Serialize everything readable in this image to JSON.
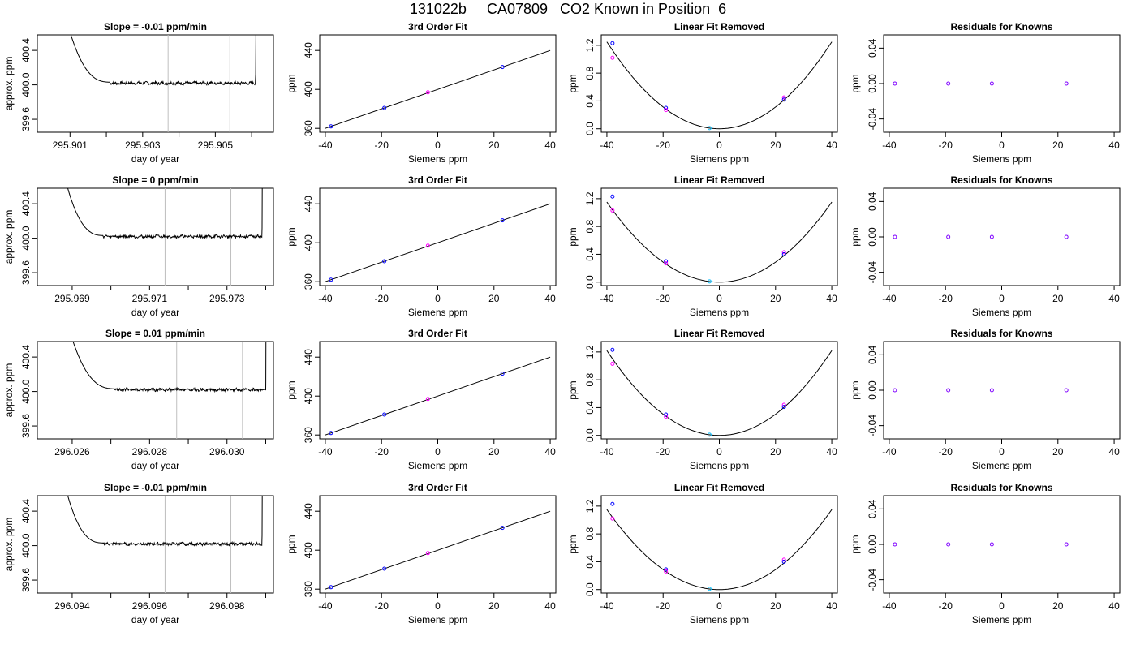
{
  "title": "131022b     CA07809   CO2 Known in Position  6",
  "colors": {
    "axis": "#000000",
    "line": "#000000",
    "gridline": "#bebebe",
    "point_blue": "#0000ff",
    "point_magenta": "#ff00ff",
    "point_cyan": "#00bfff"
  },
  "chart_data": [
    {
      "type": "line",
      "title": "Slope =  -0.01  ppm/min",
      "xlabel": "day of year",
      "ylabel": "approx. ppm",
      "xlim": [
        295.9001,
        295.9066
      ],
      "ylim": [
        399.45,
        400.58
      ],
      "xticks": [
        295.901,
        295.902,
        295.903,
        295.904,
        295.905,
        295.906
      ],
      "xtick_labels": [
        "295.901",
        "",
        "295.903",
        "",
        "295.905",
        ""
      ],
      "yticks": [
        399.6,
        400.0,
        400.4
      ],
      "ytick_labels": [
        "399.6",
        "400.0",
        "400.4"
      ],
      "vlines": [
        295.9037,
        295.9054
      ],
      "plateau_start": 295.9021,
      "plateau_end": 295.9061,
      "plateau_level": 400.02
    },
    {
      "type": "scatter",
      "title": "3rd Order Fit",
      "xlabel": "Siemens ppm",
      "ylabel": "ppm",
      "xlim": [
        -42,
        42
      ],
      "ylim": [
        356,
        456
      ],
      "xticks": [
        -40,
        -20,
        0,
        20,
        40
      ],
      "xtick_labels": [
        "-40",
        "-20",
        "0",
        "20",
        "40"
      ],
      "yticks": [
        360,
        400,
        440
      ],
      "ytick_labels": [
        "360",
        "400",
        "440"
      ],
      "points": [
        {
          "x": -38,
          "y": 362
        },
        {
          "x": -19,
          "y": 381
        },
        {
          "x": -3.5,
          "y": 397
        },
        {
          "x": 23,
          "y": 423
        }
      ],
      "fit_line": [
        {
          "x": -40,
          "y": 360
        },
        {
          "x": 40,
          "y": 440
        }
      ]
    },
    {
      "type": "scatter",
      "title": "Linear Fit Removed",
      "xlabel": "Siemens ppm",
      "ylabel": "ppm",
      "xlim": [
        -42,
        42
      ],
      "ylim": [
        -0.05,
        1.35
      ],
      "xticks": [
        -40,
        -20,
        0,
        20,
        40
      ],
      "xtick_labels": [
        "-40",
        "-20",
        "0",
        "20",
        "40"
      ],
      "yticks": [
        0.0,
        0.4,
        0.8,
        1.2
      ],
      "ytick_labels": [
        "0.0",
        "0.4",
        "0.8",
        "1.2"
      ],
      "points": [
        {
          "x": -38,
          "y": 1.23
        },
        {
          "x": -38,
          "y": 1.02
        },
        {
          "x": -19,
          "y": 0.3
        },
        {
          "x": -19,
          "y": 0.27
        },
        {
          "x": -3.5,
          "y": 0.01
        },
        {
          "x": 23,
          "y": 0.45
        },
        {
          "x": 23,
          "y": 0.42
        }
      ],
      "curve_max_y": 1.25
    },
    {
      "type": "scatter",
      "title": "Residuals for Knowns",
      "xlabel": "Siemens ppm",
      "ylabel": "ppm",
      "xlim": [
        -42,
        42
      ],
      "ylim": [
        -0.055,
        0.055
      ],
      "xticks": [
        -40,
        -20,
        0,
        20,
        40
      ],
      "xtick_labels": [
        "-40",
        "-20",
        "0",
        "20",
        "40"
      ],
      "yticks": [
        -0.04,
        0.0,
        0.04
      ],
      "ytick_labels": [
        "-0.04",
        "0.00",
        "0.04"
      ],
      "points": [
        {
          "x": -38,
          "y": 0
        },
        {
          "x": -19,
          "y": 0
        },
        {
          "x": -3.5,
          "y": 0
        },
        {
          "x": 23,
          "y": 0
        }
      ]
    },
    {
      "type": "line",
      "title": "Slope =  0  ppm/min",
      "xlabel": "day of year",
      "ylabel": "approx. ppm",
      "xlim": [
        295.9681,
        295.9742
      ],
      "ylim": [
        399.45,
        400.58
      ],
      "xticks": [
        295.969,
        295.97,
        295.971,
        295.972,
        295.973,
        295.974
      ],
      "xtick_labels": [
        "295.969",
        "",
        "295.971",
        "",
        "295.973",
        ""
      ],
      "yticks": [
        399.6,
        400.0,
        400.4
      ],
      "ytick_labels": [
        "399.6",
        "400.0",
        "400.4"
      ],
      "vlines": [
        295.9714,
        295.9731
      ],
      "plateau_start": 295.9698,
      "plateau_end": 295.9739,
      "plateau_level": 400.02
    },
    {
      "type": "scatter",
      "title": "3rd Order Fit",
      "xlabel": "Siemens ppm",
      "ylabel": "ppm",
      "xlim": [
        -42,
        42
      ],
      "ylim": [
        356,
        456
      ],
      "xticks": [
        -40,
        -20,
        0,
        20,
        40
      ],
      "xtick_labels": [
        "-40",
        "-20",
        "0",
        "20",
        "40"
      ],
      "yticks": [
        360,
        400,
        440
      ],
      "ytick_labels": [
        "360",
        "400",
        "440"
      ],
      "points": [
        {
          "x": -38,
          "y": 362
        },
        {
          "x": -19,
          "y": 381
        },
        {
          "x": -3.5,
          "y": 397
        },
        {
          "x": 23,
          "y": 423
        }
      ],
      "fit_line": [
        {
          "x": -40,
          "y": 360
        },
        {
          "x": 40,
          "y": 440
        }
      ]
    },
    {
      "type": "scatter",
      "title": "Linear Fit Removed",
      "xlabel": "Siemens ppm",
      "ylabel": "ppm",
      "xlim": [
        -42,
        42
      ],
      "ylim": [
        -0.05,
        1.35
      ],
      "xticks": [
        -40,
        -20,
        0,
        20,
        40
      ],
      "xtick_labels": [
        "-40",
        "-20",
        "0",
        "20",
        "40"
      ],
      "yticks": [
        0.0,
        0.4,
        0.8,
        1.2
      ],
      "ytick_labels": [
        "0.0",
        "0.4",
        "0.8",
        "1.2"
      ],
      "points": [
        {
          "x": -38,
          "y": 1.23
        },
        {
          "x": -38,
          "y": 1.03
        },
        {
          "x": -19,
          "y": 0.3
        },
        {
          "x": -19,
          "y": 0.27
        },
        {
          "x": -3.5,
          "y": 0.01
        },
        {
          "x": 23,
          "y": 0.43
        },
        {
          "x": 23,
          "y": 0.4
        }
      ],
      "curve_max_y": 1.15
    },
    {
      "type": "scatter",
      "title": "Residuals for Knowns",
      "xlabel": "Siemens ppm",
      "ylabel": "ppm",
      "xlim": [
        -42,
        42
      ],
      "ylim": [
        -0.055,
        0.055
      ],
      "xticks": [
        -40,
        -20,
        0,
        20,
        40
      ],
      "xtick_labels": [
        "-40",
        "-20",
        "0",
        "20",
        "40"
      ],
      "yticks": [
        -0.04,
        0.0,
        0.04
      ],
      "ytick_labels": [
        "-0.04",
        "0.00",
        "0.04"
      ],
      "points": [
        {
          "x": -38,
          "y": 0
        },
        {
          "x": -19,
          "y": 0
        },
        {
          "x": -3.5,
          "y": 0
        },
        {
          "x": 23,
          "y": 0
        }
      ]
    },
    {
      "type": "line",
      "title": "Slope =  0.01  ppm/min",
      "xlabel": "day of year",
      "ylabel": "approx. ppm",
      "xlim": [
        296.0251,
        296.0312
      ],
      "ylim": [
        399.45,
        400.58
      ],
      "xticks": [
        296.026,
        296.027,
        296.028,
        296.029,
        296.03,
        296.031
      ],
      "xtick_labels": [
        "296.026",
        "",
        "296.028",
        "",
        "296.030",
        ""
      ],
      "yticks": [
        399.6,
        400.0,
        400.4
      ],
      "ytick_labels": [
        "399.6",
        "400.0",
        "400.4"
      ],
      "vlines": [
        296.0287,
        296.0304
      ],
      "plateau_start": 296.0271,
      "plateau_end": 296.031,
      "plateau_level": 400.02
    },
    {
      "type": "scatter",
      "title": "3rd Order Fit",
      "xlabel": "Siemens ppm",
      "ylabel": "ppm",
      "xlim": [
        -42,
        42
      ],
      "ylim": [
        356,
        456
      ],
      "xticks": [
        -40,
        -20,
        0,
        20,
        40
      ],
      "xtick_labels": [
        "-40",
        "-20",
        "0",
        "20",
        "40"
      ],
      "yticks": [
        360,
        400,
        440
      ],
      "ytick_labels": [
        "360",
        "400",
        "440"
      ],
      "points": [
        {
          "x": -38,
          "y": 362
        },
        {
          "x": -19,
          "y": 381
        },
        {
          "x": -3.5,
          "y": 397
        },
        {
          "x": 23,
          "y": 423
        }
      ],
      "fit_line": [
        {
          "x": -40,
          "y": 360
        },
        {
          "x": 40,
          "y": 440
        }
      ]
    },
    {
      "type": "scatter",
      "title": "Linear Fit Removed",
      "xlabel": "Siemens ppm",
      "ylabel": "ppm",
      "xlim": [
        -42,
        42
      ],
      "ylim": [
        -0.05,
        1.35
      ],
      "xticks": [
        -40,
        -20,
        0,
        20,
        40
      ],
      "xtick_labels": [
        "-40",
        "-20",
        "0",
        "20",
        "40"
      ],
      "yticks": [
        0.0,
        0.4,
        0.8,
        1.2
      ],
      "ytick_labels": [
        "0.0",
        "0.4",
        "0.8",
        "1.2"
      ],
      "points": [
        {
          "x": -38,
          "y": 1.23
        },
        {
          "x": -38,
          "y": 1.03
        },
        {
          "x": -19,
          "y": 0.3
        },
        {
          "x": -19,
          "y": 0.27
        },
        {
          "x": -3.5,
          "y": 0.01
        },
        {
          "x": 23,
          "y": 0.44
        },
        {
          "x": 23,
          "y": 0.41
        }
      ],
      "curve_max_y": 1.22
    },
    {
      "type": "scatter",
      "title": "Residuals for Knowns",
      "xlabel": "Siemens ppm",
      "ylabel": "ppm",
      "xlim": [
        -42,
        42
      ],
      "ylim": [
        -0.055,
        0.055
      ],
      "xticks": [
        -40,
        -20,
        0,
        20,
        40
      ],
      "xtick_labels": [
        "-40",
        "-20",
        "0",
        "20",
        "40"
      ],
      "yticks": [
        -0.04,
        0.0,
        0.04
      ],
      "ytick_labels": [
        "-0.04",
        "0.00",
        "0.04"
      ],
      "points": [
        {
          "x": -38,
          "y": 0
        },
        {
          "x": -19,
          "y": 0
        },
        {
          "x": -3.5,
          "y": 0
        },
        {
          "x": 23,
          "y": 0
        }
      ]
    },
    {
      "type": "line",
      "title": "Slope =  -0.01  ppm/min",
      "xlabel": "day of year",
      "ylabel": "approx. ppm",
      "xlim": [
        296.0931,
        296.0992
      ],
      "ylim": [
        399.45,
        400.58
      ],
      "xticks": [
        296.094,
        296.095,
        296.096,
        296.097,
        296.098,
        296.099
      ],
      "xtick_labels": [
        "296.094",
        "",
        "296.096",
        "",
        "296.098",
        ""
      ],
      "yticks": [
        399.6,
        400.0,
        400.4
      ],
      "ytick_labels": [
        "399.6",
        "400.0",
        "400.4"
      ],
      "vlines": [
        296.0964,
        296.0981
      ],
      "plateau_start": 296.0948,
      "plateau_end": 296.0989,
      "plateau_level": 400.02
    },
    {
      "type": "scatter",
      "title": "3rd Order Fit",
      "xlabel": "Siemens ppm",
      "ylabel": "ppm",
      "xlim": [
        -42,
        42
      ],
      "ylim": [
        356,
        456
      ],
      "xticks": [
        -40,
        -20,
        0,
        20,
        40
      ],
      "xtick_labels": [
        "-40",
        "-20",
        "0",
        "20",
        "40"
      ],
      "yticks": [
        360,
        400,
        440
      ],
      "ytick_labels": [
        "360",
        "400",
        "440"
      ],
      "points": [
        {
          "x": -38,
          "y": 362
        },
        {
          "x": -19,
          "y": 381
        },
        {
          "x": -3.5,
          "y": 397
        },
        {
          "x": 23,
          "y": 423
        }
      ],
      "fit_line": [
        {
          "x": -40,
          "y": 360
        },
        {
          "x": 40,
          "y": 440
        }
      ]
    },
    {
      "type": "scatter",
      "title": "Linear Fit Removed",
      "xlabel": "Siemens ppm",
      "ylabel": "ppm",
      "xlim": [
        -42,
        42
      ],
      "ylim": [
        -0.05,
        1.35
      ],
      "xticks": [
        -40,
        -20,
        0,
        20,
        40
      ],
      "xtick_labels": [
        "-40",
        "-20",
        "0",
        "20",
        "40"
      ],
      "yticks": [
        0.0,
        0.4,
        0.8,
        1.2
      ],
      "ytick_labels": [
        "0.0",
        "0.4",
        "0.8",
        "1.2"
      ],
      "points": [
        {
          "x": -38,
          "y": 1.23
        },
        {
          "x": -38,
          "y": 1.02
        },
        {
          "x": -19,
          "y": 0.29
        },
        {
          "x": -19,
          "y": 0.26
        },
        {
          "x": -3.5,
          "y": 0.01
        },
        {
          "x": 23,
          "y": 0.43
        },
        {
          "x": 23,
          "y": 0.4
        }
      ],
      "curve_max_y": 1.15
    },
    {
      "type": "scatter",
      "title": "Residuals for Knowns",
      "xlabel": "Siemens ppm",
      "ylabel": "ppm",
      "xlim": [
        -42,
        42
      ],
      "ylim": [
        -0.055,
        0.055
      ],
      "xticks": [
        -40,
        -20,
        0,
        20,
        40
      ],
      "xtick_labels": [
        "-40",
        "-20",
        "0",
        "20",
        "40"
      ],
      "yticks": [
        -0.04,
        0.0,
        0.04
      ],
      "ytick_labels": [
        "-0.04",
        "0.00",
        "0.04"
      ],
      "points": [
        {
          "x": -38,
          "y": 0
        },
        {
          "x": -19,
          "y": 0
        },
        {
          "x": -3.5,
          "y": 0
        },
        {
          "x": 23,
          "y": 0
        }
      ]
    }
  ]
}
